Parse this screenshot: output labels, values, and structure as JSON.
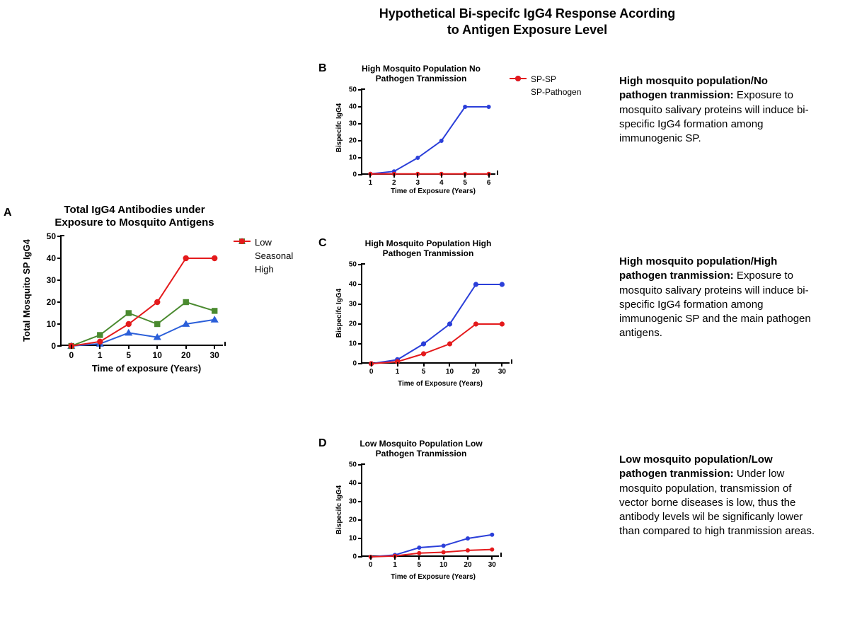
{
  "main_title": "Hypothetical Bi-specifc IgG4 Response Acording to Antigen Exposure Level",
  "panelA": {
    "label": "A",
    "title": "Total IgG4 Antibodies under Exposure to Mosquito Antigens",
    "ylabel": "Total Mosquito SP IgG4",
    "xlabel": "Time of exposure (Years)",
    "title_fontsize": 15,
    "label_fontsize": 13,
    "tick_fontsize": 12,
    "ylim": [
      0,
      50
    ],
    "ytick_step": 10,
    "x_categories": [
      "0",
      "1",
      "5",
      "10",
      "20",
      "30"
    ],
    "series": [
      {
        "name": "Low",
        "color": "#2b5fd9",
        "marker": "triangle",
        "values": [
          0,
          1,
          6,
          4,
          10,
          12
        ],
        "linewidth": 2
      },
      {
        "name": "Seasonal",
        "color": "#4a8a2f",
        "marker": "square",
        "values": [
          0,
          5,
          15,
          10,
          20,
          16
        ],
        "linewidth": 2
      },
      {
        "name": "High",
        "color": "#e41a1c",
        "marker": "circle",
        "values": [
          0,
          2,
          10,
          20,
          40,
          40
        ],
        "linewidth": 2
      }
    ],
    "marker_size": 7
  },
  "panelB": {
    "label": "B",
    "title": "High Mosquito Population No Pathogen Tranmission",
    "ylabel": "Bispecifc IgG4",
    "xlabel": "Time of Exposure (Years)",
    "title_fontsize": 12,
    "label_fontsize": 10,
    "tick_fontsize": 10,
    "ylim": [
      0,
      50
    ],
    "ytick_step": 10,
    "x_categories": [
      "1",
      "2",
      "3",
      "4",
      "5",
      "6"
    ],
    "series": [
      {
        "name": "SP-SP",
        "color": "#2b3fd9",
        "marker": "circle",
        "values": [
          0.5,
          2,
          10,
          20,
          40,
          40
        ],
        "linewidth": 2
      },
      {
        "name": "SP-Pathogen",
        "color": "#e41a1c",
        "marker": "circle",
        "values": [
          0.5,
          0.5,
          0.5,
          0.5,
          0.5,
          0.5
        ],
        "linewidth": 2
      }
    ],
    "marker_size": 5,
    "desc_title": "High mosquito population/No pathogen tranmission:",
    "desc_body": "Exposure to mosquito salivary proteins will induce bi-specific IgG4 formation among immunogenic SP."
  },
  "panelC": {
    "label": "C",
    "title": "High Mosquito Population High Pathogen Tranmission",
    "ylabel": "Bispecifc IgG4",
    "xlabel": "Time of Exposure (Years)",
    "title_fontsize": 12,
    "label_fontsize": 10,
    "tick_fontsize": 10,
    "ylim": [
      0,
      50
    ],
    "ytick_step": 10,
    "x_categories": [
      "0",
      "1",
      "5",
      "10",
      "20",
      "30"
    ],
    "series": [
      {
        "name": "SP-SP",
        "color": "#2b3fd9",
        "marker": "circle",
        "values": [
          0,
          2,
          10,
          20,
          40,
          40
        ],
        "linewidth": 2
      },
      {
        "name": "SP-Pathogen",
        "color": "#e41a1c",
        "marker": "circle",
        "values": [
          0,
          1,
          5,
          10,
          20,
          20
        ],
        "linewidth": 2
      }
    ],
    "marker_size": 6,
    "desc_title": "High mosquito population/High pathogen tranmission:",
    "desc_body": "Exposure to mosquito salivary proteins will induce bi-specific IgG4 formation among immunogenic SP and the main pathogen antigens."
  },
  "panelD": {
    "label": "D",
    "title": "Low Mosquito Population Low Pathogen Tranmission",
    "ylabel": "Bispecifc IgG4",
    "xlabel": "Time of Exposure (Years)",
    "title_fontsize": 12,
    "label_fontsize": 10,
    "tick_fontsize": 10,
    "ylim": [
      0,
      50
    ],
    "ytick_step": 10,
    "x_categories": [
      "0",
      "1",
      "5",
      "10",
      "20",
      "30"
    ],
    "series": [
      {
        "name": "SP-SP",
        "color": "#2b3fd9",
        "marker": "circle",
        "values": [
          0,
          1,
          5,
          6,
          10,
          12
        ],
        "linewidth": 2
      },
      {
        "name": "SP-Pathogen",
        "color": "#e41a1c",
        "marker": "circle",
        "values": [
          0,
          0.5,
          2,
          2.5,
          3.5,
          4
        ],
        "linewidth": 2
      }
    ],
    "marker_size": 5,
    "desc_title": "Low mosquito population/Low pathogen tranmission:",
    "desc_body": "Under low mosquito population, transmission of vector borne diseases is low, thus the antibody levels wil be significanly lower than compared to high tranmission areas."
  }
}
